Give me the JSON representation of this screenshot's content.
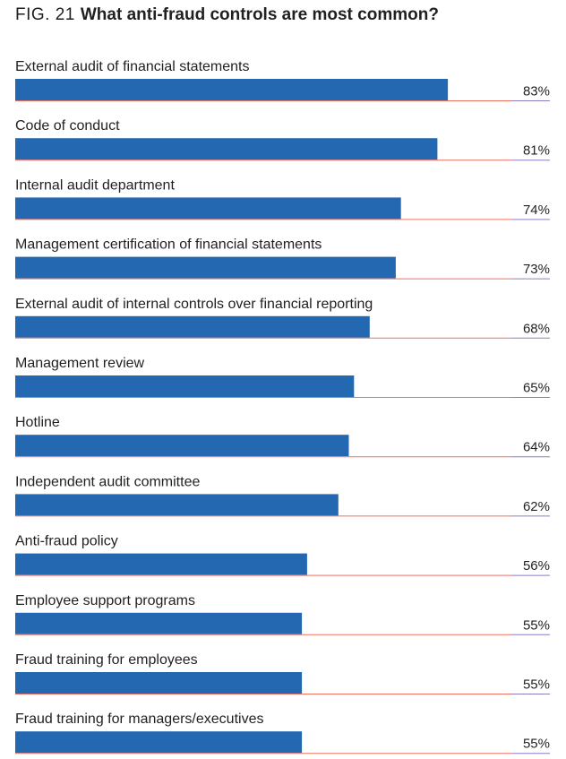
{
  "header": {
    "fig_number": "FIG. 21",
    "title": "What anti-fraud controls are most common?"
  },
  "colors": {
    "bar": "#2468b2",
    "baseline": "#ee7160",
    "value_rule": "#8e7cc3",
    "text": "#231f20"
  },
  "chart_data": {
    "type": "bar",
    "orientation": "horizontal",
    "title": "What anti-fraud controls are most common?",
    "xlabel": "",
    "ylabel": "",
    "xlim": [
      0,
      100
    ],
    "unit": "%",
    "categories": [
      "External audit of financial statements",
      "Code of conduct",
      "Internal audit department",
      "Management certification of financial statements",
      "External audit of internal controls over financial reporting",
      "Management review",
      "Hotline",
      "Independent audit committee",
      "Anti-fraud policy",
      "Employee support programs",
      "Fraud training for employees",
      "Fraud training for managers/executives"
    ],
    "values": [
      83,
      81,
      74,
      73,
      68,
      65,
      64,
      62,
      56,
      55,
      55,
      55
    ],
    "value_labels": [
      "83%",
      "81%",
      "74%",
      "73%",
      "68%",
      "65%",
      "64%",
      "62%",
      "56%",
      "55%",
      "55%",
      "55%"
    ]
  }
}
